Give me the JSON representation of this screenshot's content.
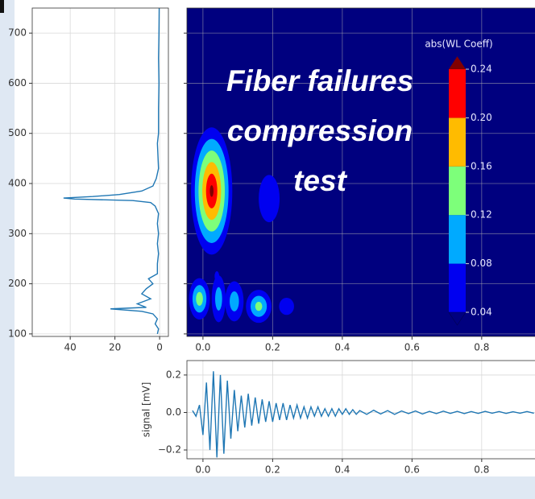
{
  "chart_data": [
    {
      "type": "line",
      "orientation": "horizontal",
      "color": "#1f77b4",
      "y": [
        100,
        110,
        120,
        130,
        140,
        145,
        150,
        153,
        160,
        170,
        180,
        190,
        200,
        210,
        220,
        240,
        260,
        280,
        300,
        320,
        340,
        355,
        362,
        366,
        369,
        371,
        374,
        378,
        385,
        395,
        410,
        430,
        480,
        500,
        550,
        600,
        650,
        700,
        750
      ],
      "values": [
        1,
        0.5,
        2,
        1,
        3,
        8,
        22,
        6,
        10,
        4,
        8,
        6,
        3,
        5,
        1,
        1,
        0.5,
        1,
        0.5,
        1,
        0.5,
        2,
        4,
        12,
        38,
        43,
        30,
        18,
        8,
        3,
        1.5,
        0.5,
        1,
        0.5,
        0.5,
        0.3,
        0.5,
        0.3,
        0.2
      ],
      "xlim": [
        57,
        -3.2
      ],
      "ylim": [
        95,
        750
      ],
      "xticks": [
        40,
        20,
        0
      ],
      "yticks": [
        100,
        200,
        300,
        400,
        500,
        600,
        700
      ],
      "grid": true
    },
    {
      "type": "contour",
      "title": "abs(WL Coeff)",
      "annotation": [
        "Fiber failures",
        "compression",
        "test"
      ],
      "background": "#00007f",
      "blobs": [
        {
          "x": 0.025,
          "y": 385,
          "rx": 0.07,
          "ry": 150,
          "peak": 0.26
        },
        {
          "x": 0.19,
          "y": 370,
          "rx": 0.07,
          "ry": 110,
          "peak": 0.07
        },
        {
          "x": -0.01,
          "y": 170,
          "rx": 0.04,
          "ry": 55,
          "peak": 0.16
        },
        {
          "x": 0.045,
          "y": 170,
          "rx": 0.03,
          "ry": 70,
          "peak": 0.12
        },
        {
          "x": 0.09,
          "y": 165,
          "rx": 0.04,
          "ry": 60,
          "peak": 0.12
        },
        {
          "x": 0.16,
          "y": 155,
          "rx": 0.05,
          "ry": 45,
          "peak": 0.15
        },
        {
          "x": 0.24,
          "y": 155,
          "rx": 0.05,
          "ry": 40,
          "peak": 0.07
        },
        {
          "x": 0.04,
          "y": 215,
          "rx": 0.02,
          "ry": 30,
          "peak": 0.06
        }
      ],
      "levels": [
        0.04,
        0.08,
        0.12,
        0.16,
        {
          "value": 0.2,
          "label": "0.20"
        },
        0.24
      ],
      "level_colors": [
        "#0000f0",
        "#00aaff",
        "#7dff7a",
        "#ffbb00",
        "#ff0000"
      ],
      "over_color": "#800000",
      "under_color": "#00007f",
      "xlim": [
        -0.046,
        0.953
      ],
      "ylim": [
        95,
        750
      ],
      "xticks": [
        {
          "value": 0,
          "label": "0.0"
        },
        0.2,
        0.4,
        0.6,
        0.8
      ],
      "yticks": [
        100,
        200,
        300,
        400,
        500,
        600,
        700
      ],
      "grid": true
    },
    {
      "type": "line",
      "ylabel": "signal [mV]",
      "color": "#1f77b4",
      "x": [
        -0.03,
        -0.02,
        -0.01,
        0,
        0.01,
        0.02,
        0.03,
        0.04,
        0.05,
        0.06,
        0.07,
        0.08,
        0.09,
        0.1,
        0.11,
        0.12,
        0.13,
        0.14,
        0.15,
        0.16,
        0.17,
        0.18,
        0.19,
        0.2,
        0.21,
        0.22,
        0.23,
        0.24,
        0.25,
        0.26,
        0.27,
        0.28,
        0.29,
        0.3,
        0.31,
        0.32,
        0.33,
        0.34,
        0.35,
        0.36,
        0.37,
        0.38,
        0.39,
        0.4,
        0.41,
        0.42,
        0.43,
        0.44,
        0.45,
        0.47,
        0.49,
        0.51,
        0.53,
        0.55,
        0.57,
        0.59,
        0.61,
        0.63,
        0.65,
        0.67,
        0.69,
        0.71,
        0.73,
        0.75,
        0.77,
        0.79,
        0.81,
        0.83,
        0.85,
        0.87,
        0.89,
        0.91,
        0.93,
        0.95
      ],
      "values": [
        0.01,
        -0.02,
        0.04,
        -0.12,
        0.16,
        -0.2,
        0.22,
        -0.24,
        0.2,
        -0.22,
        0.17,
        -0.14,
        0.12,
        -0.1,
        0.09,
        -0.08,
        0.1,
        -0.07,
        0.08,
        -0.06,
        0.07,
        -0.05,
        0.06,
        -0.05,
        0.05,
        -0.04,
        0.05,
        -0.04,
        0.04,
        -0.03,
        0.04,
        -0.03,
        0.03,
        -0.03,
        0.03,
        -0.02,
        0.03,
        -0.02,
        0.02,
        -0.02,
        0.02,
        -0.02,
        0.02,
        -0.01,
        0.02,
        -0.01,
        0.015,
        -0.01,
        0.01,
        -0.01,
        0.012,
        -0.008,
        0.01,
        -0.01,
        0.008,
        -0.006,
        0.008,
        -0.008,
        0.006,
        -0.006,
        0.007,
        -0.005,
        0.006,
        -0.006,
        0.005,
        -0.005,
        0.006,
        -0.004,
        0.005,
        -0.005,
        0.004,
        -0.004,
        0.005,
        -0.004
      ],
      "xlim": [
        -0.046,
        0.953
      ],
      "ylim": [
        -0.247,
        0.277
      ],
      "xticks": [
        {
          "value": 0,
          "label": "0.0"
        },
        0.2,
        0.4,
        0.6,
        0.8
      ],
      "yticks": [
        {
          "value": -0.2,
          "label": "−0.2"
        },
        {
          "value": 0,
          "label": "0.0"
        },
        0.2
      ],
      "grid": true
    }
  ]
}
